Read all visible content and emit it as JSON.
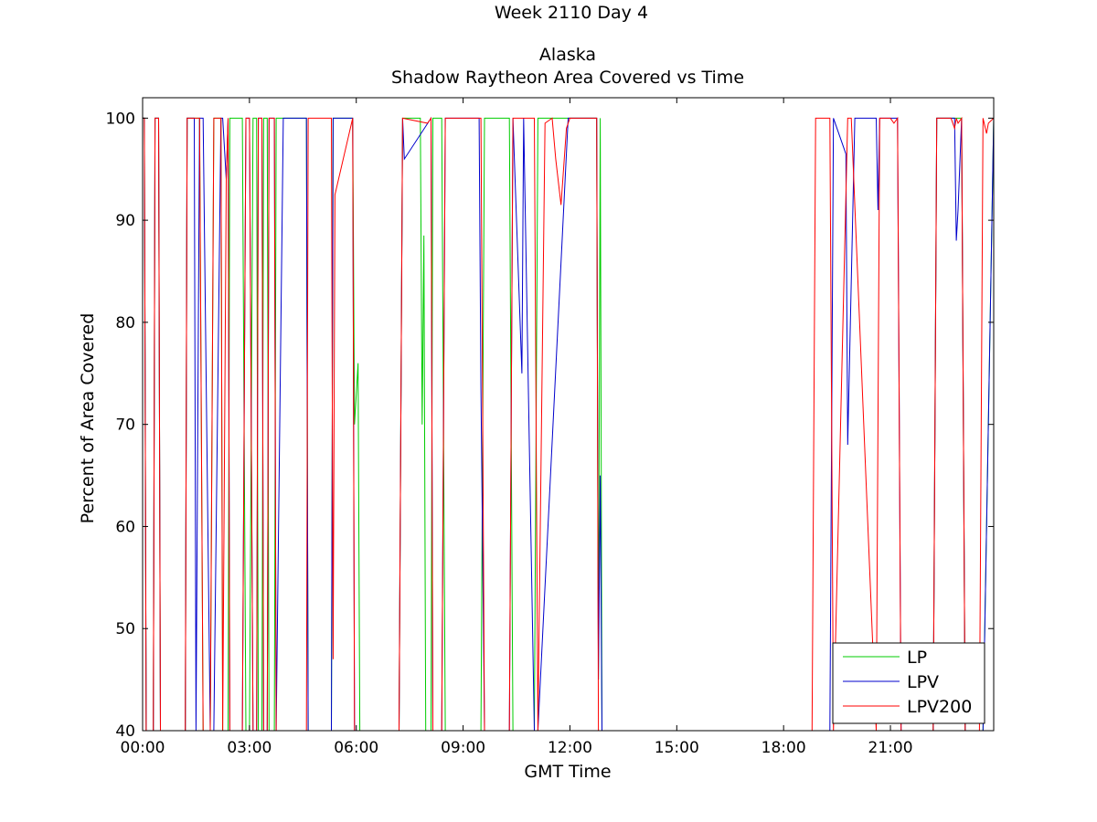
{
  "chart_data": {
    "type": "line",
    "title_lines": [
      "Week 2110 Day 4",
      "",
      "Alaska",
      "Shadow Raytheon Area Covered vs Time"
    ],
    "xlabel": "GMT Time",
    "ylabel": "Percent of Area Covered",
    "xlim": [
      0,
      23.9
    ],
    "ylim": [
      40,
      102
    ],
    "x_ticks": [
      {
        "value": 0,
        "label": "00:00"
      },
      {
        "value": 3,
        "label": "03:00"
      },
      {
        "value": 6,
        "label": "06:00"
      },
      {
        "value": 9,
        "label": "09:00"
      },
      {
        "value": 12,
        "label": "12:00"
      },
      {
        "value": 15,
        "label": "15:00"
      },
      {
        "value": 18,
        "label": "18:00"
      },
      {
        "value": 21,
        "label": "21:00"
      }
    ],
    "y_ticks": [
      {
        "value": 40,
        "label": "40"
      },
      {
        "value": 50,
        "label": "50"
      },
      {
        "value": 60,
        "label": "60"
      },
      {
        "value": 70,
        "label": "70"
      },
      {
        "value": 80,
        "label": "80"
      },
      {
        "value": 90,
        "label": "90"
      },
      {
        "value": 100,
        "label": "100"
      }
    ],
    "legend_position": "bottom-right",
    "series": [
      {
        "name": "LP",
        "color": "#00cc00",
        "x": [
          0.0,
          0.05,
          0.1,
          0.3,
          0.35,
          0.45,
          0.5,
          1.2,
          1.25,
          1.6,
          1.7,
          1.9,
          2.0,
          2.2,
          2.25,
          2.4,
          2.45,
          2.8,
          2.9,
          3.0,
          3.1,
          3.2,
          3.25,
          3.35,
          3.4,
          3.5,
          3.55,
          3.7,
          3.75,
          4.6,
          4.65,
          5.3,
          5.35,
          5.9,
          5.95,
          6.05,
          6.1,
          7.2,
          7.3,
          7.8,
          7.85,
          7.9,
          7.95,
          8.1,
          8.15,
          8.4,
          8.5,
          9.5,
          9.6,
          10.3,
          10.4,
          11.0,
          11.1,
          12.75,
          12.8,
          12.85,
          12.9,
          22.2,
          22.3,
          23.0,
          23.1,
          23.6,
          23.9
        ],
        "values": [
          100,
          100,
          40,
          40,
          100,
          100,
          40,
          40,
          100,
          100,
          40,
          40,
          100,
          100,
          40,
          40,
          100,
          100,
          40,
          40,
          100,
          100,
          40,
          40,
          100,
          100,
          40,
          40,
          100,
          100,
          40,
          40,
          100,
          100,
          70,
          76,
          40,
          40,
          100,
          100,
          70,
          88.5,
          40,
          40,
          100,
          100,
          40,
          40,
          100,
          100,
          40,
          40,
          100,
          100,
          45,
          100,
          40,
          40,
          100,
          100,
          40,
          40,
          100
        ]
      },
      {
        "name": "LPV",
        "color": "#0000cc",
        "x": [
          0.0,
          0.05,
          0.1,
          0.3,
          0.35,
          0.45,
          0.5,
          1.2,
          1.25,
          1.45,
          1.5,
          1.6,
          1.7,
          1.9,
          2.0,
          2.2,
          2.25,
          2.35,
          2.4,
          2.45,
          2.8,
          2.9,
          3.0,
          3.1,
          3.2,
          3.25,
          3.35,
          3.4,
          3.5,
          3.55,
          3.7,
          3.75,
          3.95,
          4.0,
          4.6,
          4.65,
          5.3,
          5.35,
          5.9,
          5.95,
          7.2,
          7.3,
          7.35,
          8.1,
          8.15,
          8.4,
          8.5,
          9.45,
          9.5,
          9.6,
          10.3,
          10.4,
          10.65,
          10.7,
          11.0,
          11.1,
          11.95,
          12.0,
          12.75,
          12.8,
          12.85,
          12.9,
          19.3,
          19.4,
          19.75,
          19.8,
          20.0,
          20.05,
          20.6,
          20.65,
          20.7,
          21.2,
          21.3,
          22.2,
          22.3,
          22.7,
          22.8,
          22.85,
          22.9,
          23.0,
          23.1,
          23.6,
          23.9
        ],
        "values": [
          100,
          100,
          40,
          40,
          100,
          100,
          40,
          40,
          100,
          100,
          40,
          100,
          100,
          40,
          40,
          100,
          100,
          94,
          100,
          40,
          40,
          100,
          100,
          40,
          40,
          100,
          100,
          40,
          40,
          100,
          100,
          40,
          100,
          100,
          100,
          40,
          40,
          100,
          100,
          40,
          40,
          100,
          96,
          100,
          40,
          40,
          100,
          100,
          73.5,
          40,
          40,
          100,
          75,
          100,
          40,
          40,
          100,
          100,
          100,
          45,
          65,
          40,
          40,
          100,
          96.5,
          68,
          100,
          100,
          100,
          91,
          100,
          100,
          40,
          40,
          100,
          100,
          100,
          88,
          91,
          100,
          40,
          40,
          100
        ]
      },
      {
        "name": "LPV200",
        "color": "#ff0000",
        "x": [
          0.0,
          0.05,
          0.1,
          0.3,
          0.35,
          0.45,
          0.5,
          1.2,
          1.25,
          1.6,
          1.7,
          1.9,
          2.0,
          2.2,
          2.25,
          2.35,
          2.4,
          2.45,
          2.8,
          2.9,
          3.0,
          3.1,
          3.2,
          3.25,
          3.35,
          3.4,
          3.5,
          3.55,
          3.7,
          3.75,
          4.6,
          4.65,
          5.3,
          5.35,
          5.4,
          5.9,
          5.95,
          6.05,
          7.2,
          7.3,
          8.0,
          8.1,
          8.15,
          8.4,
          8.5,
          9.5,
          9.6,
          10.3,
          10.4,
          11.0,
          11.1,
          11.3,
          11.5,
          11.6,
          11.75,
          11.9,
          12.0,
          12.75,
          12.8,
          12.9,
          18.8,
          18.9,
          19.3,
          19.4,
          19.8,
          19.9,
          20.6,
          20.7,
          21.0,
          21.1,
          21.2,
          21.3,
          21.6,
          22.2,
          22.3,
          22.7,
          22.8,
          22.85,
          22.9,
          23.0,
          23.1,
          23.5,
          23.6,
          23.7,
          23.75,
          23.9
        ],
        "values": [
          100,
          100,
          40,
          40,
          100,
          100,
          40,
          40,
          100,
          100,
          40,
          40,
          100,
          100,
          40,
          94,
          100,
          40,
          40,
          100,
          100,
          40,
          40,
          100,
          100,
          40,
          40,
          100,
          100,
          40,
          40,
          100,
          100,
          47,
          92.5,
          100,
          40,
          40,
          40,
          100,
          99.5,
          100,
          40,
          40,
          100,
          100,
          40,
          40,
          100,
          100,
          40,
          99.5,
          100,
          96,
          91.5,
          99,
          100,
          100,
          40,
          40,
          40,
          100,
          100,
          40,
          100,
          100,
          40,
          100,
          100,
          99.5,
          100,
          40,
          40,
          40,
          100,
          100,
          99,
          100,
          99.5,
          100,
          40,
          40,
          100,
          98.5,
          99.5,
          100
        ]
      }
    ]
  }
}
